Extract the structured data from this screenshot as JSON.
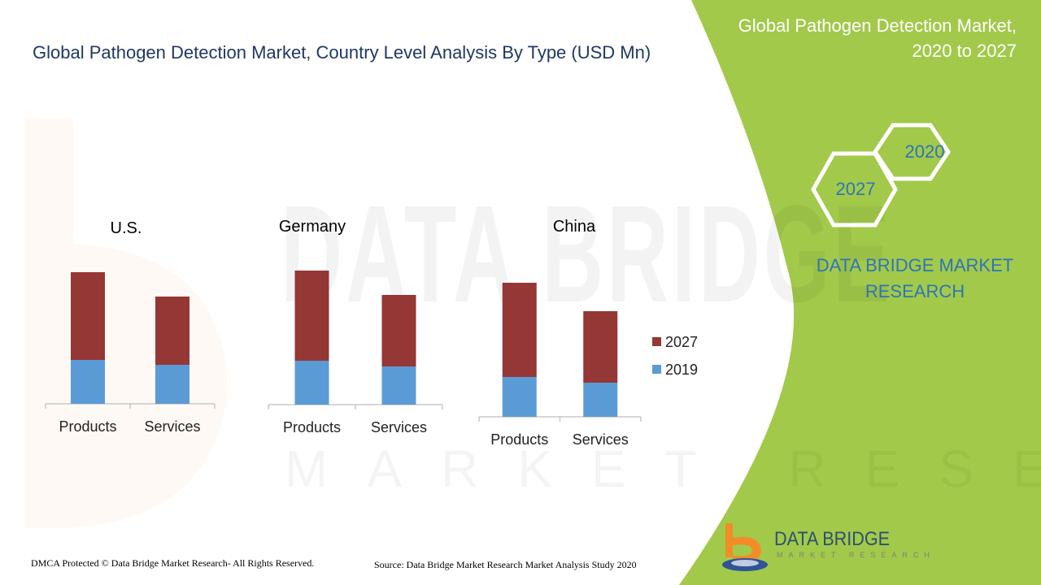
{
  "header": {
    "title": "Global Pathogen Detection Market, Country Level Analysis By Type (USD Mn)"
  },
  "panel": {
    "title_line1": "Global Pathogen Detection Market,",
    "title_line2": "2020 to 2027",
    "hex_2020": "2020",
    "hex_2027": "2027",
    "brand_line1": "DATA BRIDGE MARKET",
    "brand_line2": "RESEARCH"
  },
  "watermark": {
    "main": "DATA BRIDGE",
    "sub": "MARKET RESEARCH"
  },
  "colors": {
    "green": "#a2c94a",
    "series_2027": "#953735",
    "series_2019": "#5b9bd5",
    "brand_blue": "#2e75b6",
    "logo_orange": "#f28c28"
  },
  "chart_data": [
    {
      "type": "bar",
      "stacked": true,
      "title": "U.S.",
      "categories": [
        "Products",
        "Services"
      ],
      "series": [
        {
          "name": "2019",
          "values": [
            54,
            48
          ]
        },
        {
          "name": "2027",
          "values": [
            108,
            84
          ]
        }
      ],
      "ylim": [
        0,
        170
      ]
    },
    {
      "type": "bar",
      "stacked": true,
      "title": "Germany",
      "categories": [
        "Products",
        "Services"
      ],
      "series": [
        {
          "name": "2019",
          "values": [
            54,
            47
          ]
        },
        {
          "name": "2027",
          "values": [
            111,
            88
          ]
        }
      ],
      "ylim": [
        0,
        170
      ]
    },
    {
      "type": "bar",
      "stacked": true,
      "title": "China",
      "categories": [
        "Products",
        "Services"
      ],
      "series": [
        {
          "name": "2019",
          "values": [
            49,
            42
          ]
        },
        {
          "name": "2027",
          "values": [
            116,
            88
          ]
        }
      ],
      "ylim": [
        0,
        170
      ]
    }
  ],
  "legend": [
    {
      "name": "2027"
    },
    {
      "name": "2019"
    }
  ],
  "footer": {
    "dmca": "DMCA Protected © Data Bridge Market Research- All Rights Reserved.",
    "source": "Source: Data Bridge Market Research Market Analysis Study 2020"
  },
  "logo": {
    "name": "DATA BRIDGE",
    "sub": "MARKET RESEARCH"
  }
}
